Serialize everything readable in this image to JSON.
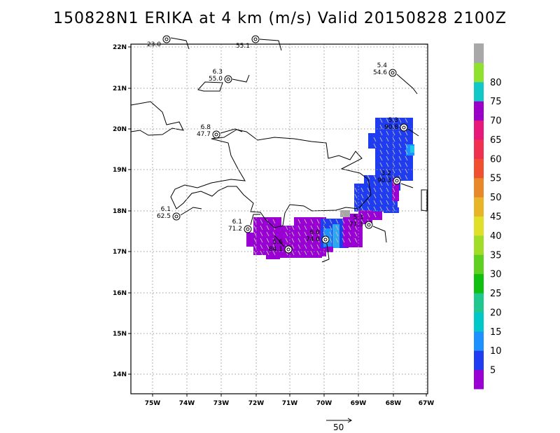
{
  "title": "150828N1 ERIKA at 4 km (m/s) Valid 20150828 2100Z",
  "axes": {
    "lat_ticks": [
      "14N",
      "15N",
      "16N",
      "17N",
      "18N",
      "19N",
      "20N",
      "21N",
      "22N"
    ],
    "lon_ticks": [
      "75W",
      "74W",
      "73W",
      "72W",
      "71W",
      "70W",
      "69W",
      "68W",
      "67W"
    ]
  },
  "colorbar": {
    "labels": [
      "5",
      "10",
      "15",
      "20",
      "25",
      "30",
      "35",
      "40",
      "45",
      "50",
      "55",
      "60",
      "65",
      "70",
      "75",
      "80"
    ],
    "colors": [
      "#9a00d4",
      "#1f3cf0",
      "#1e90ff",
      "#00c8c8",
      "#20c890",
      "#10c010",
      "#60d020",
      "#a0dc28",
      "#e0e028",
      "#e8b428",
      "#e88828",
      "#f05030",
      "#f03050",
      "#e8187a",
      "#9a00c8",
      "#10c8c8",
      "#90e030",
      "#a8a8a8"
    ]
  },
  "reference_vector": {
    "label": "50"
  },
  "stations": [
    {
      "top": "",
      "bottom": "23.0"
    },
    {
      "top": "",
      "bottom": "55.1"
    },
    {
      "top": "6.3",
      "bottom": "55.0"
    },
    {
      "top": "5.4",
      "bottom": "54.6"
    },
    {
      "top": "6.8",
      "bottom": "47.7"
    },
    {
      "top": "5.3",
      "bottom": "90.8"
    },
    {
      "top": "3.2",
      "bottom": "90.3"
    },
    {
      "top": "6.1",
      "bottom": "62.5"
    },
    {
      "top": "6.1",
      "bottom": "71.2"
    },
    {
      "top": "5.3",
      "bottom": "77.3"
    },
    {
      "top": "6.0",
      "bottom": "74.0"
    },
    {
      "top": "5.6",
      "bottom": "84.1"
    }
  ]
}
